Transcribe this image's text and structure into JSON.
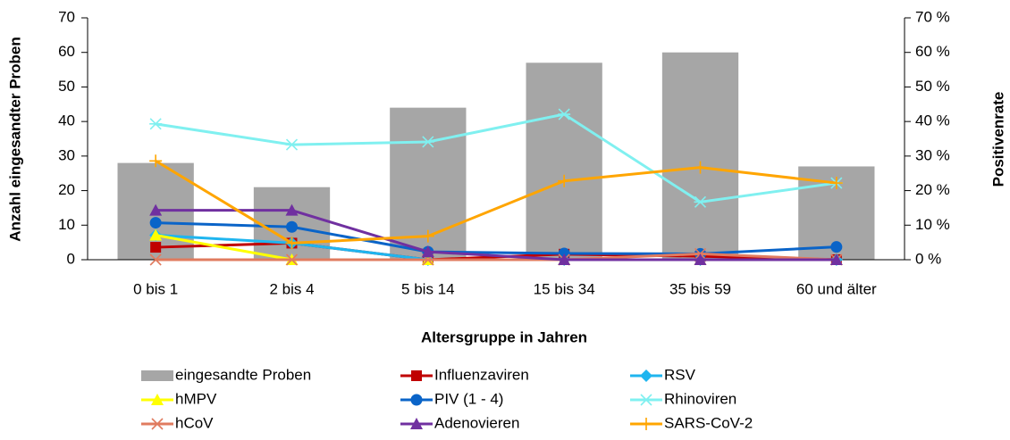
{
  "chart_data": {
    "type": "combo",
    "x_label": "Altersgruppe in Jahren",
    "y_label": "Anzahl eingesandter Proben",
    "y2_label": "Positivenrate",
    "categories": [
      "0 bis 1",
      "2 bis 4",
      "5 bis 14",
      "15 bis 34",
      "35 bis 59",
      "60 und älter"
    ],
    "ylim": [
      0,
      70
    ],
    "yticks": [
      0,
      10,
      20,
      30,
      40,
      50,
      60,
      70
    ],
    "y2lim": [
      0,
      70
    ],
    "y2ticks": [
      {
        "value": 0,
        "label": "0 %"
      },
      {
        "value": 10,
        "label": "10 %"
      },
      {
        "value": 20,
        "label": "20 %"
      },
      {
        "value": 30,
        "label": "30 %"
      },
      {
        "value": 40,
        "label": "40 %"
      },
      {
        "value": 50,
        "label": "50 %"
      },
      {
        "value": 60,
        "label": "60 %"
      },
      {
        "value": 70,
        "label": "70 %"
      }
    ],
    "grid": false,
    "legend": "bottom",
    "series": [
      {
        "name": "eingesandte Proben",
        "type": "bar",
        "color": "#a6a6a6",
        "values": [
          28,
          21,
          44,
          57,
          60,
          27
        ]
      },
      {
        "name": "Influenzaviren",
        "type": "line",
        "axis": "y2",
        "marker": "square",
        "color": "#c00000",
        "values": [
          3.6,
          4.8,
          0,
          1.6,
          1.0,
          0
        ]
      },
      {
        "name": "RSV",
        "type": "line",
        "axis": "y2",
        "marker": "diamond",
        "color": "#1fb5ef",
        "values": [
          7.1,
          4.8,
          0,
          0,
          0,
          0
        ]
      },
      {
        "name": "hMPV",
        "type": "line",
        "axis": "y2",
        "marker": "triangle",
        "color": "#ffff00",
        "values": [
          7.1,
          0,
          0,
          0,
          0,
          0
        ]
      },
      {
        "name": "PIV (1 - 4)",
        "type": "line",
        "axis": "y2",
        "marker": "circle",
        "color": "#0a64c8",
        "values": [
          10.7,
          9.5,
          2.3,
          1.8,
          1.7,
          3.7
        ]
      },
      {
        "name": "Rhinoviren",
        "type": "line",
        "axis": "y2",
        "marker": "asterisk",
        "color": "#80f0f0",
        "values": [
          39.3,
          33.3,
          34.1,
          42.1,
          16.7,
          22.2
        ]
      },
      {
        "name": "hCoV",
        "type": "line",
        "axis": "y2",
        "marker": "x",
        "color": "#e07b5f",
        "values": [
          0,
          0,
          0,
          0,
          1.7,
          0
        ]
      },
      {
        "name": "Adenovieren",
        "type": "line",
        "axis": "y2",
        "marker": "triangle",
        "color": "#7030a0",
        "values": [
          14.3,
          14.3,
          2.3,
          0,
          0,
          0
        ]
      },
      {
        "name": "SARS-CoV-2",
        "type": "line",
        "axis": "y2",
        "marker": "plus",
        "color": "#ffa500",
        "values": [
          28.6,
          4.8,
          6.8,
          22.8,
          26.7,
          22.2
        ]
      }
    ]
  }
}
